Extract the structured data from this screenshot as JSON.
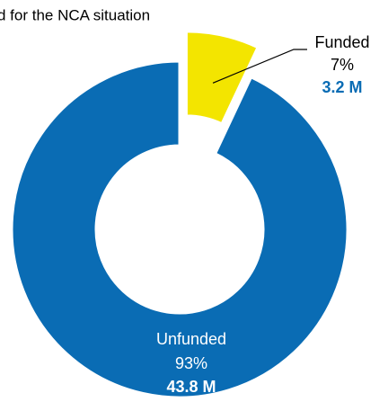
{
  "chart_data": {
    "type": "pie",
    "donut": true,
    "title": "d for the NCA situation",
    "categories": [
      "Funded",
      "Unfunded"
    ],
    "values": [
      7,
      93
    ],
    "value_labels": [
      "7%",
      "93%"
    ],
    "amounts": [
      3.2,
      43.8
    ],
    "amount_labels": [
      "3.2 M",
      "43.8 M"
    ],
    "colors": [
      "#f3e500",
      "#0a6cb4"
    ],
    "exploded": [
      true,
      false
    ]
  }
}
